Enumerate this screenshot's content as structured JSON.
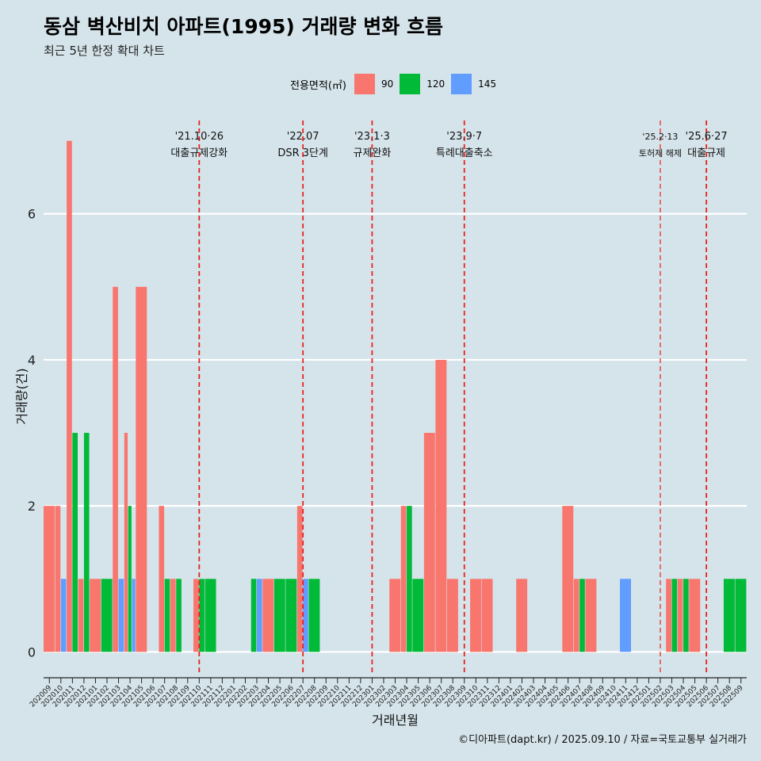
{
  "title": "동삼 벽산비치 아파트(1995) 거래량 변화 흐름",
  "subtitle": "최근 5년 한정 확대 차트",
  "caption": "©디아파트(dapt.kr) / 2025.09.10 / 자료=국토교통부 실거래가",
  "legend": {
    "title": "전용면적(㎡)",
    "items": [
      {
        "label": "90",
        "color": "#f8766d"
      },
      {
        "label": "120",
        "color": "#00ba38"
      },
      {
        "label": "145",
        "color": "#619cff"
      }
    ]
  },
  "chart_data": {
    "type": "bar",
    "xlabel": "거래년월",
    "ylabel": "거래량(건)",
    "ylim": [
      -0.3,
      7.3
    ],
    "yticks": [
      0,
      2,
      4,
      6
    ],
    "categories": [
      "202009",
      "202010",
      "202011",
      "202012",
      "202101",
      "202102",
      "202103",
      "202104",
      "202105",
      "202106",
      "202107",
      "202108",
      "202109",
      "202110",
      "202111",
      "202112",
      "202201",
      "202202",
      "202203",
      "202204",
      "202205",
      "202206",
      "202207",
      "202208",
      "202209",
      "202210",
      "202211",
      "202212",
      "202301",
      "202302",
      "202303",
      "202304",
      "202305",
      "202306",
      "202307",
      "202308",
      "202309",
      "202310",
      "202311",
      "202312",
      "202401",
      "202402",
      "202403",
      "202404",
      "202405",
      "202406",
      "202407",
      "202408",
      "202409",
      "202410",
      "202411",
      "202412",
      "202501",
      "202502",
      "202503",
      "202504",
      "202505",
      "202506",
      "202507",
      "202508",
      "202509"
    ],
    "series": [
      {
        "name": "90",
        "color": "#f8766d",
        "values": [
          2,
          2,
          7,
          1,
          1,
          0,
          5,
          3,
          5,
          0,
          2,
          1,
          0,
          1,
          0,
          0,
          0,
          0,
          0,
          1,
          0,
          0,
          2,
          0,
          0,
          0,
          0,
          0,
          0,
          0,
          1,
          2,
          0,
          3,
          4,
          1,
          0,
          1,
          1,
          0,
          0,
          1,
          0,
          0,
          0,
          2,
          1,
          1,
          0,
          0,
          0,
          0,
          0,
          0,
          1,
          1,
          1,
          0,
          0,
          0,
          0
        ]
      },
      {
        "name": "120",
        "color": "#00ba38",
        "values": [
          0,
          0,
          3,
          3,
          0,
          1,
          0,
          2,
          0,
          0,
          1,
          1,
          0,
          1,
          1,
          0,
          0,
          0,
          1,
          0,
          1,
          1,
          0,
          1,
          0,
          0,
          0,
          0,
          0,
          0,
          0,
          2,
          1,
          0,
          0,
          0,
          0,
          0,
          0,
          0,
          0,
          0,
          0,
          0,
          0,
          0,
          1,
          0,
          0,
          0,
          0,
          0,
          0,
          0,
          1,
          1,
          0,
          0,
          0,
          1,
          1
        ]
      },
      {
        "name": "145",
        "color": "#619cff",
        "values": [
          0,
          1,
          0,
          0,
          0,
          0,
          1,
          1,
          0,
          0,
          0,
          0,
          0,
          0,
          0,
          0,
          0,
          0,
          1,
          0,
          0,
          0,
          1,
          0,
          0,
          0,
          0,
          0,
          0,
          0,
          0,
          0,
          0,
          0,
          0,
          0,
          0,
          0,
          0,
          0,
          0,
          0,
          0,
          0,
          0,
          0,
          0,
          0,
          0,
          0,
          1,
          0,
          0,
          0,
          0,
          0,
          0,
          0,
          0,
          0,
          0
        ]
      }
    ],
    "events": [
      {
        "date": "'21.10·26",
        "label": "대출규제강화",
        "x": "202110"
      },
      {
        "date": "'22.07",
        "label": "DSR 3단계",
        "x": "202207"
      },
      {
        "date": "'23.1·3",
        "label": "규제완화",
        "x": "202301"
      },
      {
        "date": "'23.9·7",
        "label": "특례대출축소",
        "x": "202309"
      },
      {
        "date": "'25.2·13",
        "label": "토허제 해제",
        "x": "202502"
      },
      {
        "date": "'25.6·27",
        "label": "대출규제",
        "x": "202506"
      }
    ]
  }
}
